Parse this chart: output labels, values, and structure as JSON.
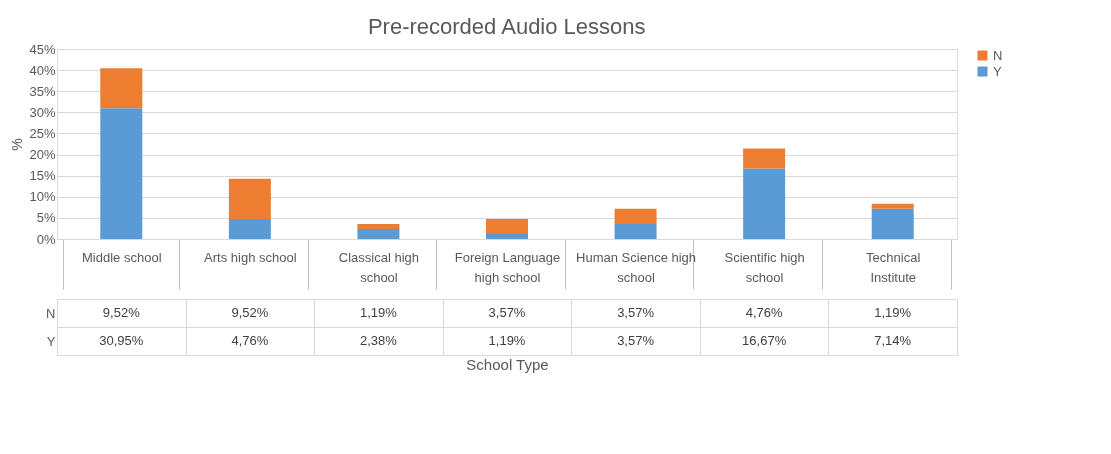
{
  "chart_data": {
    "type": "bar",
    "title": "Pre-recorded Audio Lessons",
    "xlabel": "School Type",
    "ylabel": "%",
    "categories": [
      "Middle school",
      "Arts high school",
      "Classical high school",
      "Foreign Language high school",
      "Human Science high school",
      "Scientific high school",
      "Technical Institute"
    ],
    "stacked": true,
    "series": [
      {
        "name": "Y",
        "color": "#5b9bd5",
        "values": [
          30.95,
          4.76,
          2.38,
          1.19,
          3.57,
          16.67,
          7.14
        ],
        "value_labels": [
          "30,95%",
          "4,76%",
          "2,38%",
          "1,19%",
          "3,57%",
          "16,67%",
          "7,14%"
        ]
      },
      {
        "name": "N",
        "color": "#ed7d31",
        "values": [
          9.52,
          9.52,
          1.19,
          3.57,
          3.57,
          4.76,
          1.19
        ],
        "value_labels": [
          "9,52%",
          "9,52%",
          "1,19%",
          "3,57%",
          "3,57%",
          "4,76%",
          "1,19%"
        ]
      }
    ],
    "ylim": [
      0,
      45
    ],
    "yticks": [
      {
        "value": 0,
        "label": "0%"
      },
      {
        "value": 5,
        "label": "5%"
      },
      {
        "value": 10,
        "label": "10%"
      },
      {
        "value": 15,
        "label": "15%"
      },
      {
        "value": 20,
        "label": "20%"
      },
      {
        "value": 25,
        "label": "25%"
      },
      {
        "value": 30,
        "label": "30%"
      },
      {
        "value": 35,
        "label": "35%"
      },
      {
        "value": 40,
        "label": "40%"
      },
      {
        "value": 45,
        "label": "45%"
      }
    ],
    "grid": "y",
    "legend": "right"
  }
}
